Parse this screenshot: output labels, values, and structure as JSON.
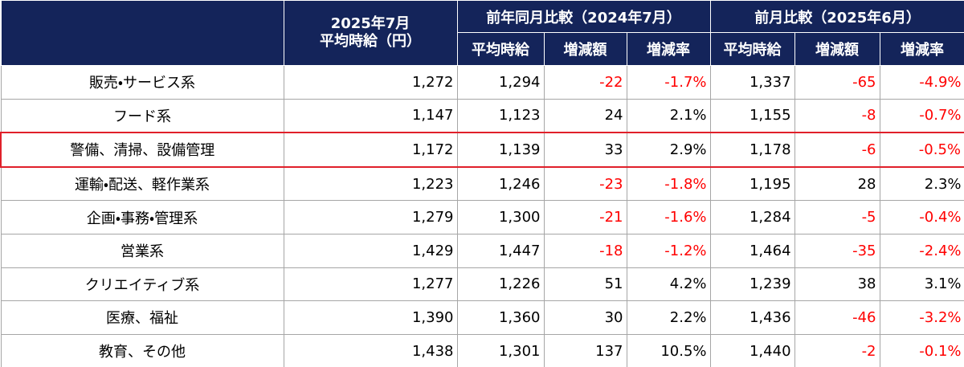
{
  "header": {
    "period": [
      "2025年7月",
      "平均時給（円）"
    ],
    "groups": [
      "前年同月比較（2024年7月）",
      "前月比較（2025年6月）"
    ],
    "subheaders": [
      "平均時給",
      "増減額",
      "増減率",
      "平均時給",
      "増減額",
      "増減率"
    ]
  },
  "table": {
    "rows": [
      [
        "販売・サービス系",
        "1,272",
        "1,294",
        "-22",
        "-1.7%",
        "1,337",
        "-65",
        "-4.9%"
      ],
      [
        "フード系",
        "1,147",
        "1,123",
        "24",
        "2.1%",
        "1,155",
        "-8",
        "-0.7%"
      ],
      [
        "警備、清掃、設備管理",
        "1,172",
        "1,139",
        "33",
        "2.9%",
        "1,178",
        "-6",
        "-0.5%"
      ],
      [
        "運輸・配送、軽作業系",
        "1,223",
        "1,246",
        "-23",
        "-1.8%",
        "1,195",
        "28",
        "2.3%"
      ],
      [
        "企画・事務・管理系",
        "1,279",
        "1,300",
        "-21",
        "-1.6%",
        "1,284",
        "-5",
        "-0.4%"
      ],
      [
        "営業系",
        "1,429",
        "1,447",
        "-18",
        "-1.2%",
        "1,464",
        "-35",
        "-2.4%"
      ],
      [
        "クリエイティブ系",
        "1,277",
        "1,226",
        "51",
        "4.2%",
        "1,239",
        "38",
        "3.1%"
      ],
      [
        "医療、福祉",
        "1,390",
        "1,360",
        "30",
        "2.2%",
        "1,436",
        "-46",
        "-3.2%"
      ],
      [
        "教育、その他",
        "1,438",
        "1,301",
        "137",
        "10.5%",
        "1,440",
        "-2",
        "-0.1%"
      ]
    ]
  }
}
